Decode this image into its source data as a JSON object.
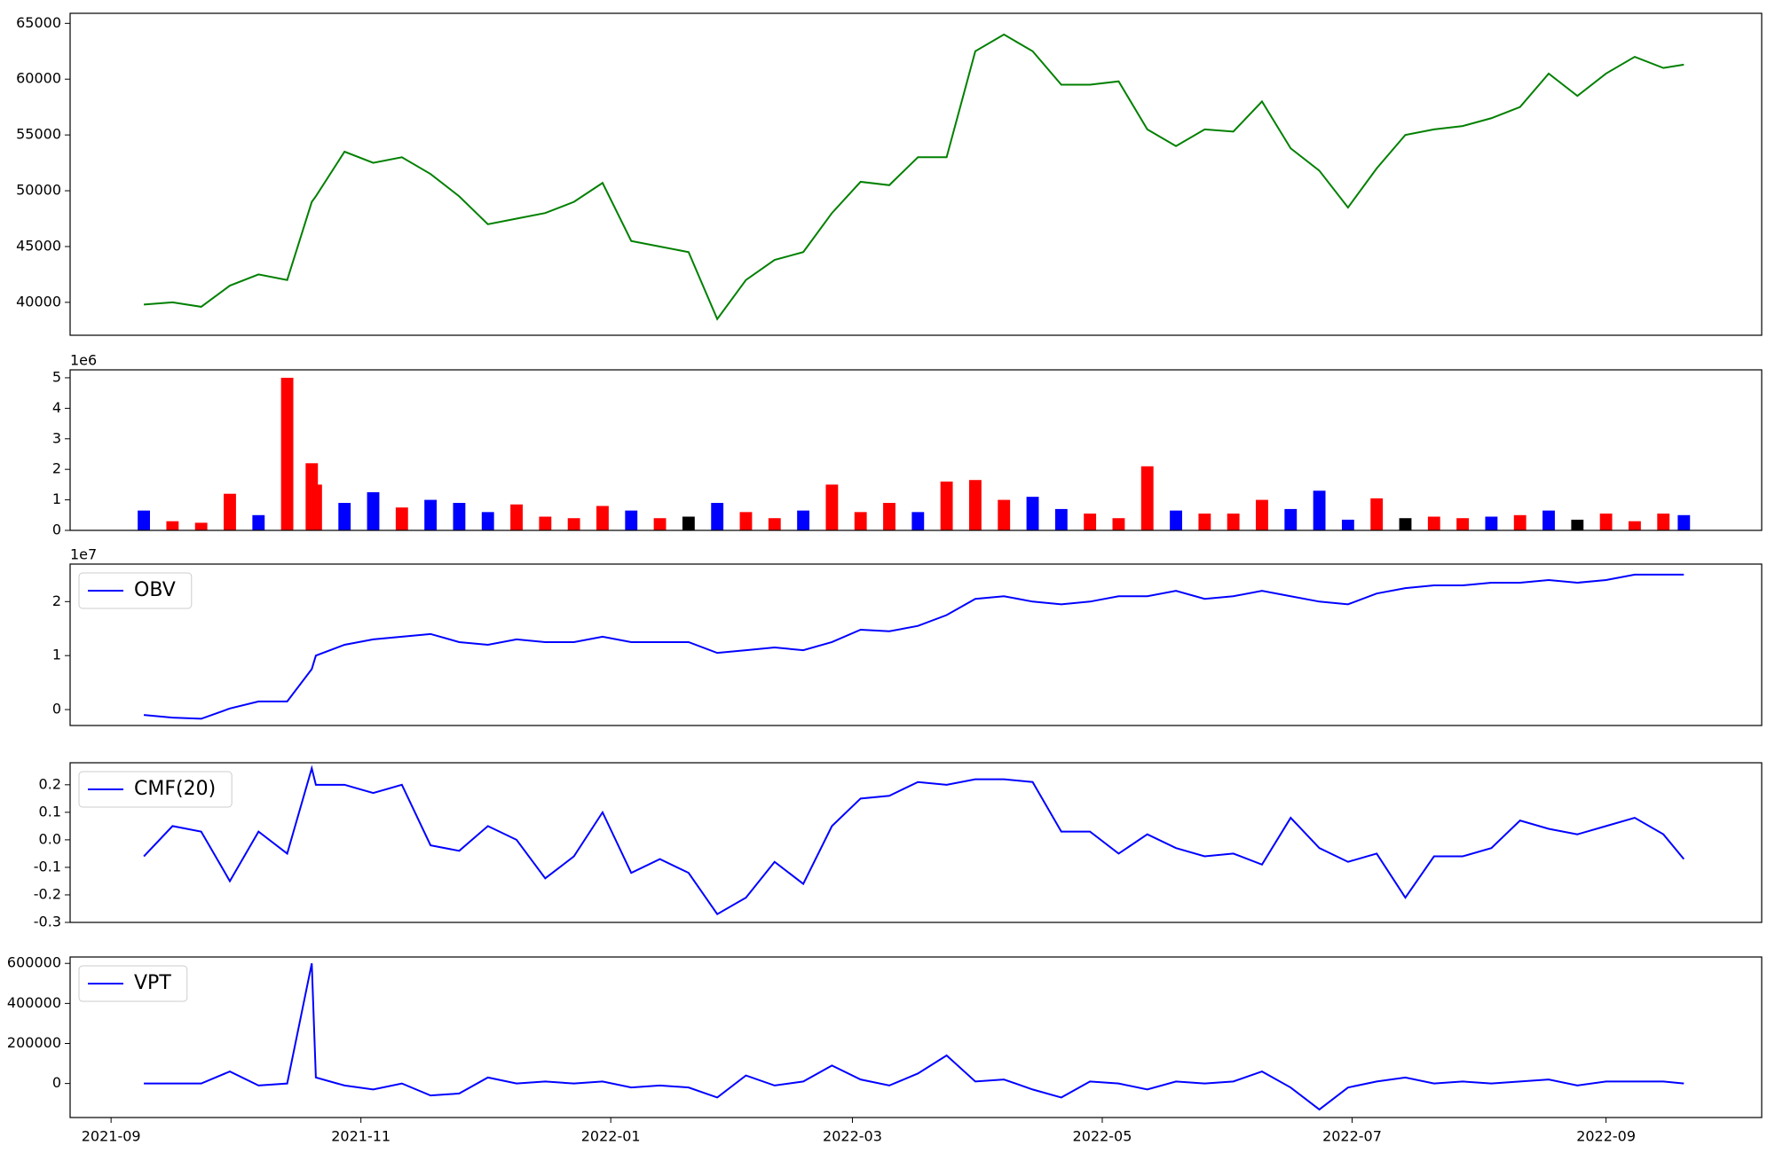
{
  "chart_data": [
    {
      "type": "line",
      "color": "#008000",
      "values": [
        39800,
        40000,
        39600,
        41500,
        42500,
        42000,
        49000,
        49500,
        53500,
        52500,
        53000,
        51500,
        49500,
        47000,
        47500,
        48000,
        49000,
        50700,
        45500,
        45000,
        44500,
        38500,
        42000,
        43800,
        44500,
        48000,
        50800,
        50500,
        53000,
        53000,
        62500,
        64000,
        62500,
        59500,
        59500,
        59800,
        55500,
        54000,
        55500,
        55300,
        58000,
        53800,
        51800,
        48500,
        52000,
        55000,
        55500,
        55800,
        56500,
        57500,
        60500,
        58500,
        60500,
        62000,
        61000,
        61300
      ],
      "ylim": [
        37050,
        65900
      ],
      "yticks": [
        40000,
        45000,
        50000,
        55000,
        60000,
        65000
      ]
    },
    {
      "type": "bar",
      "offset_label": "1e6",
      "values": [
        650000,
        300000,
        250000,
        1200000,
        500000,
        5000000,
        2200000,
        1500000,
        900000,
        1250000,
        750000,
        1000000,
        900000,
        600000,
        850000,
        450000,
        400000,
        800000,
        650000,
        400000,
        450000,
        900000,
        600000,
        400000,
        650000,
        1500000,
        600000,
        900000,
        600000,
        1600000,
        1650000,
        1000000,
        1100000,
        700000,
        550000,
        400000,
        2100000,
        650000,
        550000,
        550000,
        1000000,
        700000,
        1300000,
        350000,
        1050000,
        400000,
        450000,
        400000,
        450000,
        500000,
        650000,
        350000,
        550000,
        300000,
        550000,
        500000
      ],
      "colors": [
        "blue",
        "red",
        "red",
        "red",
        "blue",
        "red",
        "red",
        "red",
        "blue",
        "blue",
        "red",
        "blue",
        "blue",
        "blue",
        "red",
        "red",
        "red",
        "red",
        "blue",
        "red",
        "black",
        "blue",
        "red",
        "red",
        "blue",
        "red",
        "red",
        "red",
        "blue",
        "red",
        "red",
        "red",
        "blue",
        "blue",
        "red",
        "red",
        "red",
        "blue",
        "red",
        "red",
        "red",
        "blue",
        "blue",
        "blue",
        "red",
        "black",
        "red",
        "red",
        "blue",
        "red",
        "blue",
        "black",
        "red",
        "red",
        "red",
        "blue"
      ],
      "ylim": [
        0,
        5260000
      ],
      "yticks": [
        0,
        {
          "value": 1000000,
          "label": "1"
        },
        {
          "value": 2000000,
          "label": "2"
        },
        {
          "value": 3000000,
          "label": "3"
        },
        {
          "value": 4000000,
          "label": "4"
        },
        {
          "value": 5000000,
          "label": "5"
        }
      ]
    },
    {
      "type": "line",
      "offset_label": "1e7",
      "legend": "upper left",
      "series": [
        {
          "name": "OBV",
          "color": "#0000ff",
          "values": [
            -1000000,
            -1500000,
            -1700000,
            200000,
            1500000,
            1500000,
            7500000,
            10000000,
            12000000,
            13000000,
            13500000,
            14000000,
            12500000,
            12000000,
            13000000,
            12500000,
            12500000,
            13500000,
            12500000,
            12500000,
            12500000,
            10500000,
            11000000,
            11500000,
            11000000,
            12500000,
            14800000,
            14500000,
            15500000,
            17500000,
            20500000,
            21000000,
            20000000,
            19500000,
            20000000,
            21000000,
            21000000,
            22000000,
            20500000,
            21000000,
            22000000,
            21000000,
            20000000,
            19500000,
            21500000,
            22500000,
            23000000,
            23000000,
            23500000,
            23500000,
            24000000,
            23500000,
            24000000,
            25000000,
            25000000,
            25000000
          ]
        }
      ],
      "ylim": [
        -2950000,
        26950000
      ],
      "yticks": [
        0,
        {
          "value": 10000000,
          "label": "1"
        },
        {
          "value": 20000000,
          "label": "2"
        }
      ]
    },
    {
      "type": "line",
      "legend": "upper left",
      "series": [
        {
          "name": "CMF(20)",
          "color": "#0000ff",
          "values": [
            -0.06,
            0.05,
            0.03,
            -0.15,
            0.03,
            -0.05,
            0.26,
            0.2,
            0.2,
            0.17,
            0.2,
            -0.02,
            -0.04,
            0.05,
            0.0,
            -0.14,
            -0.06,
            0.1,
            -0.12,
            -0.07,
            -0.12,
            -0.27,
            -0.21,
            -0.08,
            -0.16,
            0.05,
            0.15,
            0.16,
            0.21,
            0.2,
            0.22,
            0.22,
            0.21,
            0.03,
            0.03,
            -0.05,
            0.02,
            -0.03,
            -0.06,
            -0.05,
            -0.09,
            0.08,
            -0.03,
            -0.08,
            -0.05,
            -0.21,
            -0.06,
            -0.06,
            -0.03,
            0.07,
            0.04,
            0.02,
            0.05,
            0.08,
            0.02,
            -0.07
          ]
        }
      ],
      "ylim": [
        -0.3,
        0.28
      ],
      "yticks": [
        -0.3,
        -0.2,
        -0.1,
        {
          "value": 0,
          "label": "0.0"
        },
        0.1,
        0.2
      ]
    },
    {
      "type": "line",
      "legend": "upper left",
      "series": [
        {
          "name": "VPT",
          "color": "#0000ff",
          "values": [
            0,
            0,
            0,
            60000,
            -10000,
            0,
            600000,
            30000,
            -10000,
            -30000,
            0,
            -60000,
            -50000,
            30000,
            0,
            10000,
            0,
            10000,
            -20000,
            -10000,
            -20000,
            -70000,
            40000,
            -10000,
            10000,
            90000,
            20000,
            -10000,
            50000,
            140000,
            10000,
            20000,
            -30000,
            -70000,
            10000,
            0,
            -30000,
            10000,
            0,
            10000,
            60000,
            -20000,
            -130000,
            -20000,
            10000,
            30000,
            0,
            10000,
            0,
            10000,
            20000,
            -10000,
            10000,
            10000,
            10000,
            0
          ]
        }
      ],
      "ylim": [
        -170000,
        632000
      ],
      "yticks": [
        0,
        200000,
        400000,
        600000
      ],
      "x": [
        "2021-09-09",
        "2021-09-16",
        "2021-09-23",
        "2021-09-30",
        "2021-10-07",
        "2021-10-14",
        "2021-10-20",
        "2021-10-21",
        "2021-10-28",
        "2021-11-04",
        "2021-11-11",
        "2021-11-18",
        "2021-11-25",
        "2021-12-02",
        "2021-12-09",
        "2021-12-16",
        "2021-12-23",
        "2021-12-30",
        "2022-01-06",
        "2022-01-13",
        "2022-01-20",
        "2022-01-27",
        "2022-02-03",
        "2022-02-10",
        "2022-02-17",
        "2022-02-24",
        "2022-03-03",
        "2022-03-10",
        "2022-03-17",
        "2022-03-24",
        "2022-03-31",
        "2022-04-07",
        "2022-04-14",
        "2022-04-21",
        "2022-04-28",
        "2022-05-05",
        "2022-05-12",
        "2022-05-19",
        "2022-05-26",
        "2022-06-02",
        "2022-06-09",
        "2022-06-16",
        "2022-06-23",
        "2022-06-30",
        "2022-07-07",
        "2022-07-14",
        "2022-07-21",
        "2022-07-28",
        "2022-08-04",
        "2022-08-11",
        "2022-08-18",
        "2022-08-25",
        "2022-09-01",
        "2022-09-08",
        "2022-09-15",
        "2022-09-20"
      ],
      "xlim": [
        "2021-08-22",
        "2022-10-09"
      ],
      "xticks": [
        "2021-09",
        "2021-11",
        "2022-01",
        "2022-03",
        "2022-05",
        "2022-07",
        "2022-09"
      ]
    }
  ]
}
